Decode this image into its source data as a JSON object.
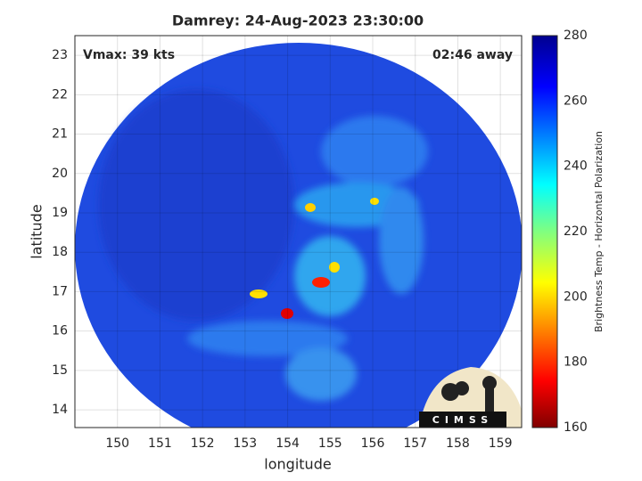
{
  "title": "Damrey: 24-Aug-2023 23:30:00",
  "annotations": {
    "vmax": "Vmax: 39 kts",
    "away": "02:46 away"
  },
  "x_axis": {
    "label": "longitude",
    "lim": [
      149,
      159.5
    ],
    "ticks": [
      150,
      151,
      152,
      153,
      154,
      155,
      156,
      157,
      158,
      159
    ]
  },
  "y_axis": {
    "label": "latitude",
    "lim": [
      13.55,
      23.5
    ],
    "ticks": [
      14,
      15,
      16,
      17,
      18,
      19,
      20,
      21,
      22,
      23
    ]
  },
  "colorbar": {
    "label": "Brightness Temp - Horizontal Polarization",
    "lim": [
      160,
      280
    ],
    "ticks": [
      160,
      180,
      200,
      220,
      240,
      260,
      280
    ]
  },
  "logo": "CIMSS"
}
